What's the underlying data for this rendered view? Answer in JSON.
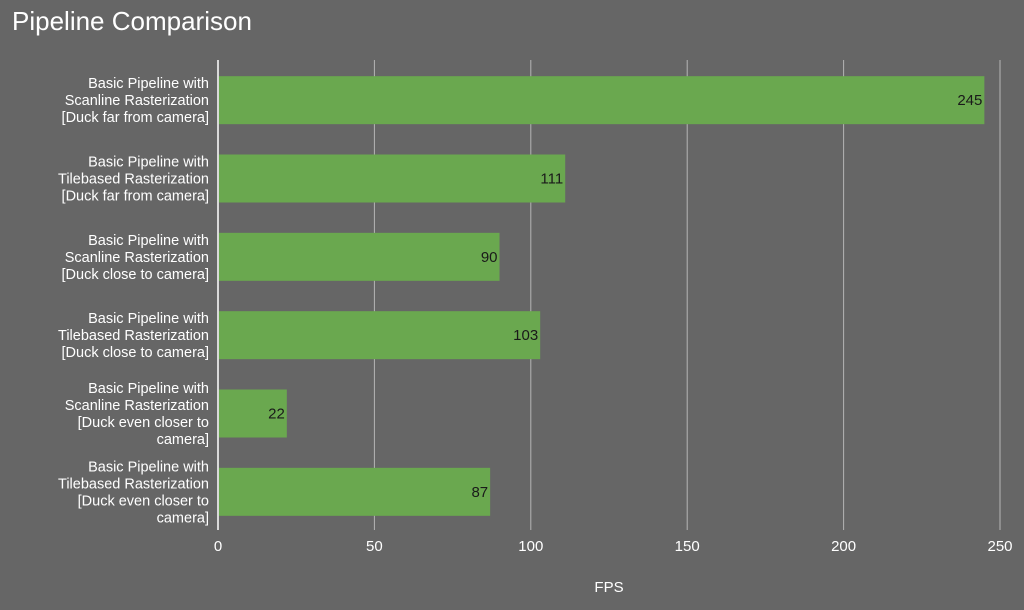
{
  "chart_data": {
    "type": "bar",
    "orientation": "horizontal",
    "title": "Pipeline Comparison",
    "xlabel": "FPS",
    "ylabel": "",
    "xlim": [
      0,
      250
    ],
    "xticks": [
      0,
      50,
      100,
      150,
      200,
      250
    ],
    "grid": true,
    "legend": "none",
    "bar_color": "#6aa84f",
    "categories": [
      [
        "Basic Pipeline with",
        "Scanline Rasterization",
        "[Duck far from camera]"
      ],
      [
        "Basic Pipeline with",
        "Tilebased Rasterization",
        "[Duck far from camera]"
      ],
      [
        "Basic Pipeline with",
        "Scanline Rasterization",
        "[Duck close to camera]"
      ],
      [
        "Basic Pipeline with",
        "Tilebased Rasterization",
        "[Duck close to camera]"
      ],
      [
        "Basic Pipeline with",
        "Scanline Rasterization",
        "[Duck even closer to",
        "camera]"
      ],
      [
        "Basic Pipeline with",
        "Tilebased Rasterization",
        "[Duck even closer to",
        "camera]"
      ]
    ],
    "values": [
      245,
      111,
      90,
      103,
      22,
      87
    ]
  }
}
